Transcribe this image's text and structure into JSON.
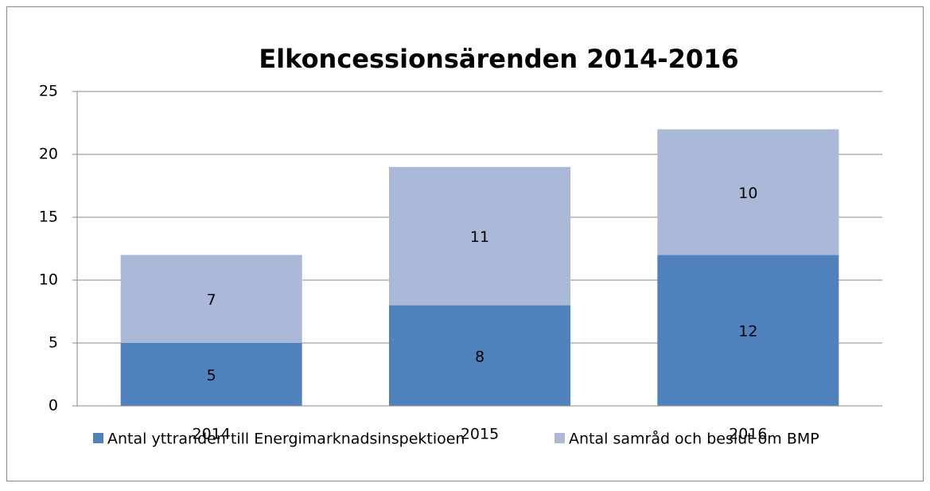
{
  "chart_data": {
    "type": "stacked_bar",
    "title": "Elkoncessionsärenden 2014-2016",
    "categories": [
      "2014",
      "2015",
      "2016"
    ],
    "series": [
      {
        "name": "Antal yttranden till Energimarknadsinspektioen",
        "color": "#4f81bd",
        "values": [
          5,
          8,
          12
        ]
      },
      {
        "name": "Antal samråd och beslut om BMP",
        "color": "#aab9d7",
        "values": [
          7,
          11,
          10
        ]
      }
    ],
    "ylim": [
      0,
      25
    ],
    "yticks": [
      0,
      5,
      10,
      15,
      20,
      25
    ],
    "grid": true,
    "legend": "bottom"
  }
}
